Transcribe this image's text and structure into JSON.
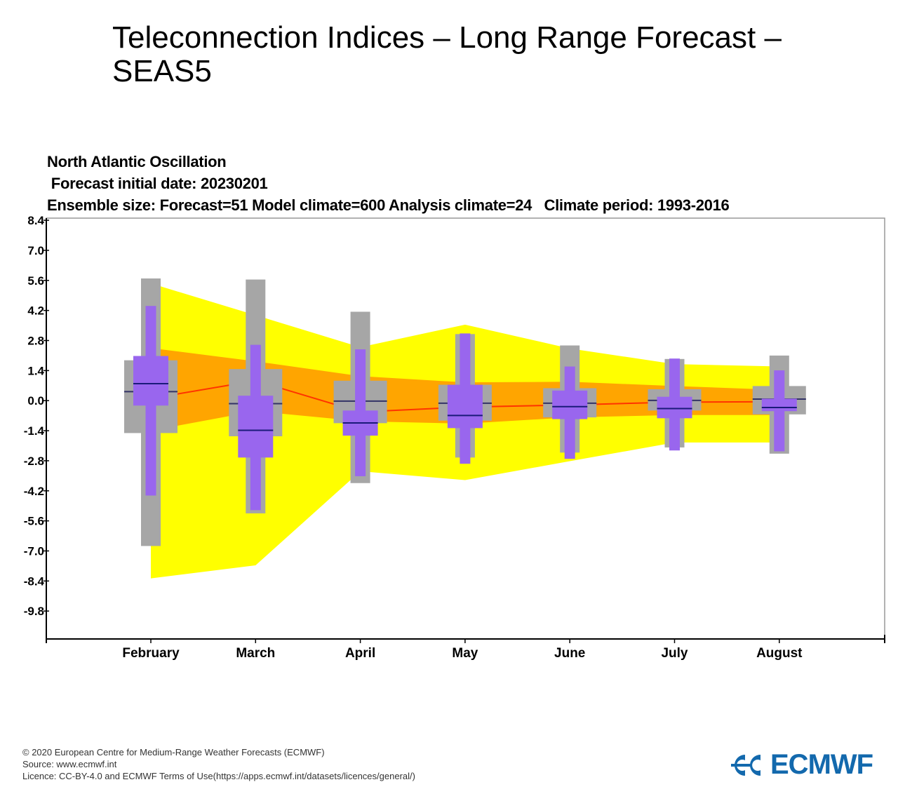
{
  "page_title": "Teleconnection Indices – Long Range Forecast – SEAS5",
  "colors": {
    "analysis_outer": "#ffff00",
    "analysis_inner": "#ffa500",
    "analysis_median": "#ff3300",
    "model_climate": "#a6a6a6",
    "forecast": "#9966ee",
    "median_line": "#1a1a7a",
    "logo": "#1369ad"
  },
  "chart_data": {
    "type": "box",
    "title": "North Atlantic Oscillation",
    "subtitle": " Forecast initial date: 20230201",
    "subtitle2": "Ensemble size: Forecast=51 Model climate=600 Analysis climate=24   Climate period: 1993-2016",
    "categories": [
      "February",
      "March",
      "April",
      "May",
      "June",
      "July",
      "August"
    ],
    "yticks": [
      "8.4",
      "7.0",
      "5.6",
      "4.2",
      "2.8",
      "1.4",
      "0.0",
      "-1.4",
      "-2.8",
      "-4.2",
      "-5.6",
      "-7.0",
      "-8.4",
      "-9.8"
    ],
    "ylim": [
      -11.1,
      8.5
    ],
    "grid": false,
    "model_climate": {
      "whisker_high": [
        5.69,
        5.64,
        4.14,
        3.1,
        2.57,
        1.94,
        2.1
      ],
      "box_high": [
        1.88,
        1.47,
        0.93,
        0.74,
        0.58,
        0.53,
        0.68
      ],
      "median": [
        0.42,
        -0.14,
        -0.02,
        -0.12,
        -0.12,
        0.01,
        0.07
      ],
      "box_low": [
        -1.51,
        -1.66,
        -1.05,
        -0.93,
        -0.78,
        -0.46,
        -0.64
      ],
      "whisker_low": [
        -6.77,
        -5.25,
        -3.84,
        -2.65,
        -2.42,
        -2.18,
        -2.47
      ]
    },
    "forecast": {
      "whisker_high": [
        4.41,
        2.6,
        2.39,
        3.13,
        1.59,
        1.96,
        1.41
      ],
      "box_high": [
        2.08,
        0.23,
        -0.46,
        0.74,
        0.47,
        0.18,
        0.09
      ],
      "median": [
        0.79,
        -1.38,
        -1.04,
        -0.69,
        -0.28,
        -0.37,
        -0.32
      ],
      "box_low": [
        -0.23,
        -2.65,
        -1.63,
        -1.28,
        -0.86,
        -0.82,
        -0.49
      ],
      "whisker_low": [
        -4.42,
        -5.1,
        -3.52,
        -2.94,
        -2.71,
        -2.32,
        -2.36
      ]
    },
    "analysis_climate": {
      "max": [
        5.46,
        3.98,
        2.49,
        3.54,
        2.43,
        1.7,
        1.59
      ],
      "upper": [
        2.45,
        1.83,
        1.14,
        0.85,
        0.88,
        0.68,
        0.5
      ],
      "median": [
        0.1,
        0.93,
        -0.53,
        -0.3,
        -0.2,
        -0.07,
        -0.05
      ],
      "lower": [
        -1.4,
        -0.49,
        -0.96,
        -1.07,
        -0.78,
        -0.67,
        -0.67
      ],
      "min": [
        -8.28,
        -7.67,
        -3.29,
        -3.7,
        -2.82,
        -1.95,
        -1.95
      ]
    }
  },
  "footer": {
    "copyright": "© 2020 European Centre for Medium-Range Weather Forecasts (ECMWF)",
    "source": "Source: www.ecmwf.int",
    "licence": "Licence: CC-BY-4.0 and ECMWF Terms of Use(https://apps.ecmwf.int/datasets/licences/general/)"
  },
  "logo": {
    "text": "ECMWF",
    "icon": "ecmwf-logo-icon"
  }
}
